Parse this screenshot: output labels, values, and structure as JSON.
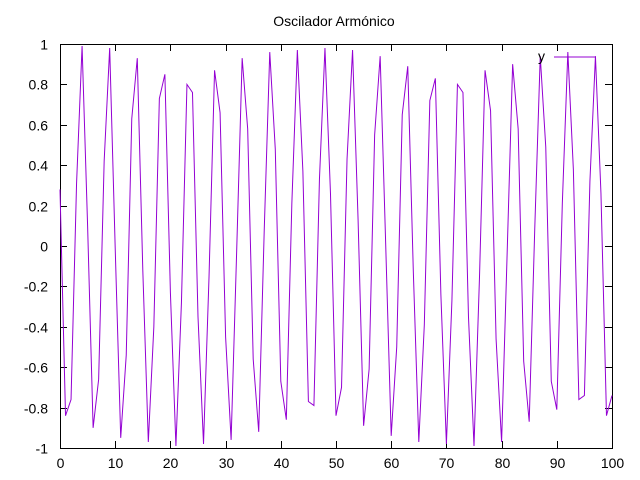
{
  "chart_data": {
    "type": "line",
    "title": "Oscilador Armónico",
    "xlabel": "",
    "ylabel": "",
    "xlim": [
      0,
      100
    ],
    "ylim": [
      -1,
      1
    ],
    "x_ticks": [
      "0",
      "10",
      "20",
      "30",
      "40",
      "50",
      "60",
      "70",
      "80",
      "90",
      "100"
    ],
    "y_ticks": [
      "1",
      "0.8",
      "0.6",
      "0.4",
      "0.2",
      "0",
      "-0.2",
      "-0.4",
      "-0.6",
      "-0.8",
      "-1"
    ],
    "grid": false,
    "legend": "top-right",
    "series": [
      {
        "name": "y",
        "color": "#9400d3",
        "x": [
          0,
          1,
          2,
          3,
          4,
          5,
          6,
          7,
          8,
          9,
          10,
          11,
          12,
          13,
          14,
          15,
          16,
          17,
          18,
          19,
          20,
          21,
          22,
          23,
          24,
          25,
          26,
          27,
          28,
          29,
          30,
          31,
          32,
          33,
          34,
          35,
          36,
          37,
          38,
          39,
          40,
          41,
          42,
          43,
          44,
          45,
          46,
          47,
          48,
          49,
          50,
          51,
          52,
          53,
          54,
          55,
          56,
          57,
          58,
          59,
          60,
          61,
          62,
          63,
          64,
          65,
          66,
          67,
          68,
          69,
          70,
          71,
          72,
          73,
          74,
          75,
          76,
          77,
          78,
          79,
          80,
          81,
          82,
          83,
          84,
          85,
          86,
          87,
          88,
          89,
          90,
          91,
          92,
          93,
          94,
          95,
          96,
          97,
          98,
          99,
          100
        ],
        "values": [
          0.28,
          -0.84,
          -0.76,
          0.31,
          0.99,
          0.1,
          -0.9,
          -0.66,
          0.42,
          0.98,
          -0.01,
          -0.95,
          -0.54,
          0.63,
          0.93,
          -0.12,
          -0.97,
          -0.4,
          0.73,
          0.85,
          -0.23,
          -0.99,
          -0.28,
          0.8,
          0.76,
          -0.35,
          -0.98,
          -0.15,
          0.87,
          0.66,
          -0.45,
          -0.96,
          -0.03,
          0.93,
          0.58,
          -0.56,
          -0.92,
          0.08,
          0.96,
          0.48,
          -0.67,
          -0.86,
          0.21,
          0.97,
          0.37,
          -0.77,
          -0.79,
          0.33,
          0.98,
          0.26,
          -0.84,
          -0.7,
          0.43,
          0.97,
          0.13,
          -0.89,
          -0.61,
          0.55,
          0.94,
          0.01,
          -0.94,
          -0.5,
          0.65,
          0.89,
          -0.12,
          -0.97,
          -0.39,
          0.72,
          0.83,
          -0.24,
          -0.98,
          -0.27,
          0.8,
          0.76,
          -0.35,
          -0.99,
          -0.15,
          0.87,
          0.67,
          -0.46,
          -0.97,
          -0.04,
          0.9,
          0.58,
          -0.57,
          -0.87,
          0.08,
          0.94,
          0.49,
          -0.67,
          -0.81,
          0.21,
          0.96,
          0.38,
          -0.76,
          -0.74,
          0.32,
          0.94,
          0.26,
          -0.84,
          -0.74
        ]
      }
    ]
  }
}
